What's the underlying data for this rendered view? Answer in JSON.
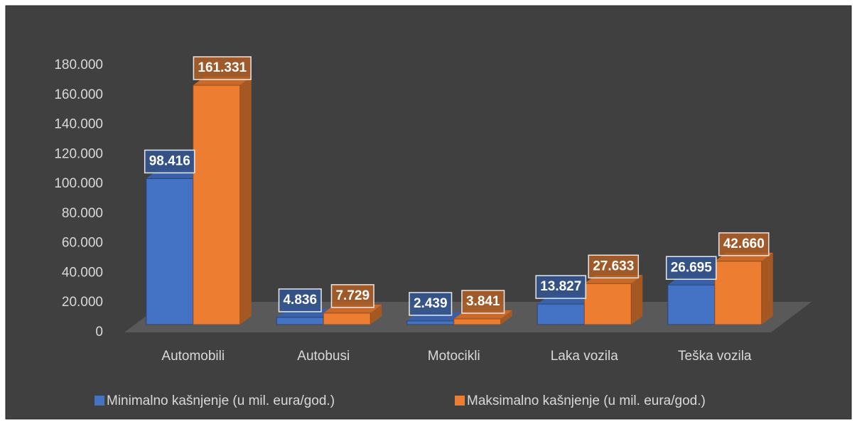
{
  "chart_data": {
    "type": "bar3d",
    "categories": [
      "Automobili",
      "Autobusi",
      "Motocikli",
      "Laka vozila",
      "Teška vozila"
    ],
    "series": [
      {
        "name": "Minimalno kašnjenje (u mil. eura/god.)",
        "color": "#4472c4",
        "values": [
          98416,
          4836,
          2439,
          13827,
          26695
        ],
        "value_labels": [
          "98.416",
          "4.836",
          "2.439",
          "13.827",
          "26.695"
        ]
      },
      {
        "name": "Maksimalno kašnjenje (u mil. eura/god.)",
        "color": "#ed7d31",
        "values": [
          161331,
          7729,
          3841,
          27633,
          42660
        ],
        "value_labels": [
          "161.331",
          "7.729",
          "3.841",
          "27.633",
          "42.660"
        ]
      }
    ],
    "ylim": [
      0,
      180000
    ],
    "yticks": [
      0,
      {
        "value": 20000,
        "label": "20.000"
      },
      {
        "value": 40000,
        "label": "40.000"
      },
      {
        "value": 60000,
        "label": "60.000"
      },
      {
        "value": 80000,
        "label": "80.000"
      },
      {
        "value": 100000,
        "label": "100.000"
      },
      {
        "value": 120000,
        "label": "120.000"
      },
      {
        "value": 140000,
        "label": "140.000"
      },
      {
        "value": 160000,
        "label": "160.000"
      },
      {
        "value": 180000,
        "label": "180.000"
      }
    ],
    "legend": "bottom"
  }
}
